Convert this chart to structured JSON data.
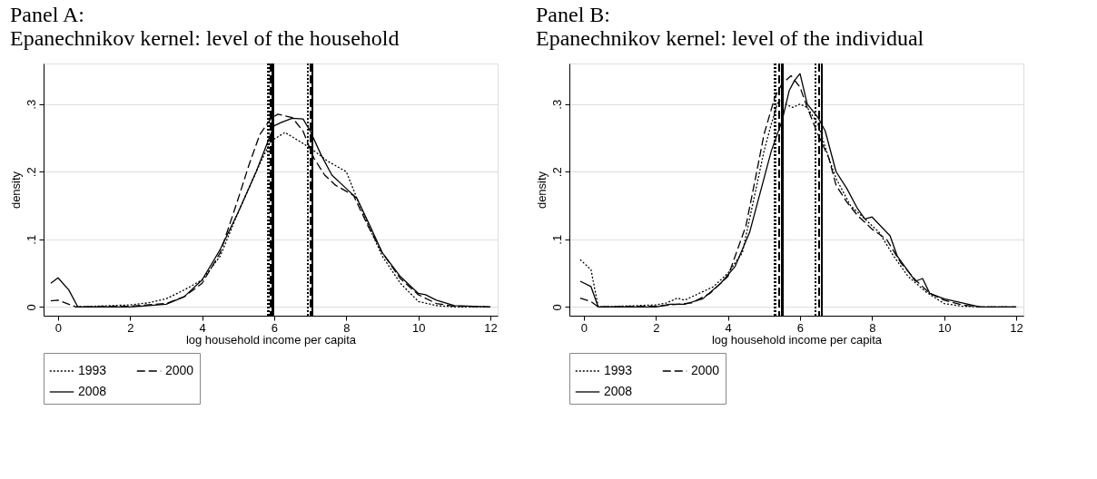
{
  "chart_data": [
    {
      "type": "line",
      "title": [
        "Panel A:",
        "Epanechnikov kernel: level of the household"
      ],
      "xlabel": "log household income per capita",
      "ylabel": "density",
      "xlim": [
        -0.4,
        12.2
      ],
      "ylim": [
        -0.013,
        0.36
      ],
      "xticks": [
        0,
        2,
        4,
        6,
        8,
        10,
        12
      ],
      "yticks": [
        {
          "value": 0,
          "label": "0"
        },
        {
          "value": 0.1,
          "label": ".1"
        },
        {
          "value": 0.2,
          "label": ".2"
        },
        {
          "value": 0.3,
          "label": ".3"
        }
      ],
      "grid": "y",
      "legend": "bottom",
      "marker": "none",
      "series": [
        {
          "name": "1993",
          "color": "#000000",
          "line_style": "dotted",
          "x": [
            0.5,
            1,
            2,
            2.5,
            3,
            3.5,
            4,
            4.5,
            5,
            5.5,
            5.9,
            6.3,
            6.7,
            7,
            7.5,
            8,
            8.3,
            8.7,
            9,
            9.5,
            10,
            10.5,
            11,
            12
          ],
          "values": [
            0,
            0.001,
            0.003,
            0.006,
            0.012,
            0.025,
            0.04,
            0.075,
            0.14,
            0.2,
            0.245,
            0.258,
            0.245,
            0.235,
            0.215,
            0.2,
            0.16,
            0.11,
            0.075,
            0.035,
            0.008,
            0.002,
            0,
            0
          ]
        },
        {
          "name": "2000",
          "color": "#000000",
          "line_style": "dashed",
          "x": [
            -0.2,
            0,
            0.5,
            2,
            3,
            3.5,
            4,
            4.5,
            5,
            5.3,
            5.6,
            5.9,
            6.1,
            6.5,
            6.8,
            7.1,
            7.4,
            7.7,
            8.2,
            8.6,
            9,
            9.5,
            10,
            10.5,
            11,
            12
          ],
          "values": [
            0.009,
            0.01,
            0,
            0.001,
            0.005,
            0.015,
            0.035,
            0.08,
            0.16,
            0.21,
            0.255,
            0.278,
            0.285,
            0.28,
            0.26,
            0.22,
            0.195,
            0.18,
            0.165,
            0.12,
            0.08,
            0.042,
            0.018,
            0.005,
            0.001,
            0
          ]
        },
        {
          "name": "2008",
          "color": "#000000",
          "line_style": "solid",
          "x": [
            -0.2,
            0,
            0.3,
            0.55,
            2,
            3,
            3.5,
            4,
            4.5,
            5,
            5.5,
            5.9,
            6,
            6.2,
            6.5,
            6.8,
            7,
            7.3,
            7.6,
            8,
            8.3,
            8.7,
            9,
            9.5,
            10,
            10.2,
            10.5,
            11,
            12
          ],
          "values": [
            0.035,
            0.043,
            0.025,
            0,
            0,
            0.004,
            0.015,
            0.04,
            0.085,
            0.14,
            0.2,
            0.255,
            0.268,
            0.273,
            0.279,
            0.278,
            0.26,
            0.225,
            0.195,
            0.175,
            0.16,
            0.115,
            0.08,
            0.045,
            0.02,
            0.018,
            0.01,
            0.002,
            0
          ]
        }
      ],
      "ref_lines": [
        {
          "axis": "x",
          "value": 5.84,
          "color": "#000000",
          "line_style": "dotted"
        },
        {
          "axis": "x",
          "value": 5.9,
          "color": "#000000",
          "line_style": "dashed"
        },
        {
          "axis": "x",
          "value": 5.96,
          "color": "#000000",
          "line_style": "solid"
        },
        {
          "axis": "x",
          "value": 6.94,
          "color": "#000000",
          "line_style": "dotted"
        },
        {
          "axis": "x",
          "value": 7.0,
          "color": "#000000",
          "line_style": "dashed"
        },
        {
          "axis": "x",
          "value": 7.06,
          "color": "#000000",
          "line_style": "solid"
        }
      ]
    },
    {
      "type": "line",
      "title": [
        "Panel B:",
        "Epanechnikov kernel: level of the individual"
      ],
      "xlabel": "log household income per capita",
      "ylabel": "density",
      "xlim": [
        -0.4,
        12.2
      ],
      "ylim": [
        -0.013,
        0.36
      ],
      "xticks": [
        0,
        2,
        4,
        6,
        8,
        10,
        12
      ],
      "yticks": [
        {
          "value": 0,
          "label": "0"
        },
        {
          "value": 0.1,
          "label": ".1"
        },
        {
          "value": 0.2,
          "label": ".2"
        },
        {
          "value": 0.3,
          "label": ".3"
        }
      ],
      "grid": "y",
      "legend": "bottom",
      "marker": "none",
      "series": [
        {
          "name": "1993",
          "color": "#000000",
          "line_style": "dotted",
          "x": [
            -0.1,
            0.2,
            0.4,
            1,
            2,
            2.3,
            2.6,
            2.8,
            3.2,
            3.6,
            4,
            4.4,
            4.8,
            5,
            5.2,
            5.4,
            5.6,
            5.8,
            6,
            6.2,
            6.5,
            6.8,
            7,
            7.4,
            7.8,
            8.2,
            8.6,
            9,
            9.5,
            10,
            10.5,
            11,
            12
          ],
          "values": [
            0.07,
            0.055,
            0,
            0.001,
            0.003,
            0.006,
            0.013,
            0.01,
            0.02,
            0.03,
            0.05,
            0.08,
            0.18,
            0.23,
            0.27,
            0.305,
            0.3,
            0.295,
            0.3,
            0.295,
            0.27,
            0.22,
            0.19,
            0.15,
            0.13,
            0.11,
            0.075,
            0.045,
            0.022,
            0.005,
            0.001,
            0,
            0
          ]
        },
        {
          "name": "2000",
          "color": "#000000",
          "line_style": "dashed",
          "x": [
            -0.1,
            0.2,
            0.4,
            2,
            3,
            3.5,
            4,
            4.5,
            4.8,
            5,
            5.3,
            5.5,
            5.75,
            6,
            6.2,
            6.5,
            6.8,
            7,
            7.3,
            7.6,
            8,
            8.4,
            8.8,
            9.2,
            9.6,
            10,
            10.5,
            11,
            12
          ],
          "values": [
            0.013,
            0.008,
            0,
            0.001,
            0.006,
            0.02,
            0.045,
            0.12,
            0.2,
            0.255,
            0.31,
            0.33,
            0.342,
            0.325,
            0.295,
            0.255,
            0.22,
            0.18,
            0.155,
            0.135,
            0.115,
            0.1,
            0.065,
            0.04,
            0.02,
            0.01,
            0.003,
            0,
            0
          ]
        },
        {
          "name": "2008",
          "color": "#000000",
          "line_style": "solid",
          "x": [
            -0.1,
            0.2,
            0.4,
            2,
            2.2,
            2.4,
            2.8,
            3.3,
            3.8,
            4.2,
            4.6,
            4.9,
            5.2,
            5.5,
            5.7,
            5.85,
            6,
            6.2,
            6.5,
            6.7,
            7,
            7.3,
            7.6,
            7.8,
            8,
            8.5,
            8.7,
            9.2,
            9.4,
            9.6,
            10,
            10.5,
            11,
            12
          ],
          "values": [
            0.038,
            0.03,
            0,
            0,
            0.002,
            0.004,
            0.004,
            0.012,
            0.035,
            0.06,
            0.11,
            0.17,
            0.23,
            0.275,
            0.32,
            0.335,
            0.345,
            0.3,
            0.28,
            0.26,
            0.2,
            0.175,
            0.145,
            0.13,
            0.133,
            0.105,
            0.075,
            0.038,
            0.042,
            0.02,
            0.012,
            0.006,
            0,
            0
          ]
        }
      ],
      "ref_lines": [
        {
          "axis": "x",
          "value": 5.31,
          "color": "#000000",
          "line_style": "dotted"
        },
        {
          "axis": "x",
          "value": 5.42,
          "color": "#000000",
          "line_style": "dashed"
        },
        {
          "axis": "x",
          "value": 5.51,
          "color": "#000000",
          "line_style": "solid"
        },
        {
          "axis": "x",
          "value": 6.43,
          "color": "#000000",
          "line_style": "dotted"
        },
        {
          "axis": "x",
          "value": 6.53,
          "color": "#000000",
          "line_style": "dashed"
        },
        {
          "axis": "x",
          "value": 6.61,
          "color": "#000000",
          "line_style": "solid"
        }
      ]
    }
  ]
}
